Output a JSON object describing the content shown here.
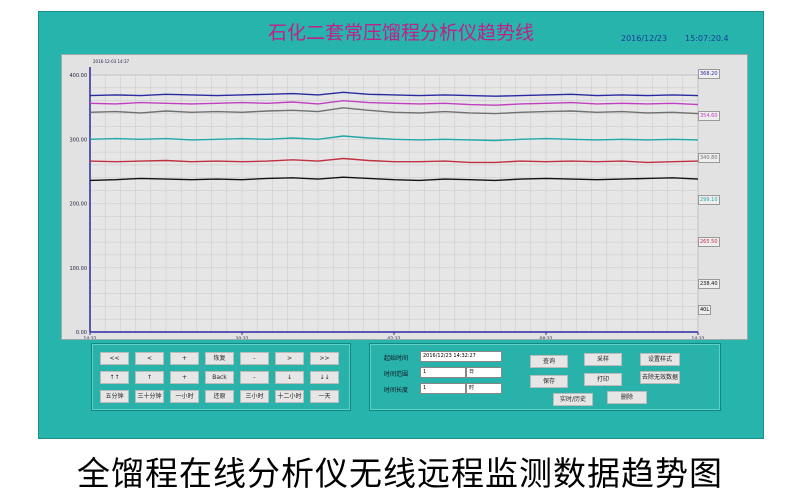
{
  "header": {
    "title": "石化二套常压馏程分析仪趋势线",
    "date": "2016/12/23",
    "time": "15:07:20.4"
  },
  "chart_data": {
    "type": "line",
    "ylim": [
      0,
      400
    ],
    "yticks": [
      "400.00",
      "300.00",
      "200.00",
      "100.00",
      "0.00"
    ],
    "cursor_label": "2016-12-03 14:37",
    "xticks": [
      {
        "t": "14:32",
        "d": "2016-12-03"
      },
      {
        "t": "20:32",
        "d": "2016-12-04"
      },
      {
        "t": "02:32",
        "d": "2016-12-06"
      },
      {
        "t": "08:32",
        "d": "2016-12-07"
      },
      {
        "t": "14:32",
        "d": "2016-12-08"
      }
    ],
    "grid": true,
    "series": [
      {
        "color": "#2a2aa0",
        "values": [
          368,
          369,
          368,
          370,
          369,
          368,
          369,
          370,
          371,
          369,
          373,
          370,
          369,
          368,
          369,
          368,
          367,
          368,
          369,
          370,
          368,
          369,
          368,
          369,
          368
        ]
      },
      {
        "color": "#c040c0",
        "values": [
          356,
          355,
          357,
          356,
          355,
          356,
          357,
          356,
          358,
          355,
          360,
          357,
          356,
          355,
          356,
          354,
          353,
          355,
          356,
          357,
          355,
          356,
          355,
          356,
          354
        ]
      },
      {
        "color": "#707070",
        "values": [
          342,
          343,
          341,
          344,
          342,
          343,
          342,
          344,
          345,
          343,
          349,
          345,
          342,
          341,
          343,
          341,
          340,
          342,
          343,
          344,
          342,
          343,
          341,
          342,
          340
        ]
      },
      {
        "color": "#20a8a8",
        "values": [
          300,
          301,
          300,
          301,
          299,
          300,
          301,
          300,
          302,
          300,
          305,
          302,
          300,
          299,
          300,
          299,
          298,
          300,
          301,
          300,
          299,
          300,
          299,
          300,
          299
        ]
      },
      {
        "color": "#c03040",
        "values": [
          266,
          265,
          266,
          267,
          265,
          266,
          265,
          266,
          268,
          266,
          270,
          267,
          265,
          265,
          266,
          264,
          264,
          266,
          265,
          266,
          265,
          266,
          264,
          265,
          266
        ]
      },
      {
        "color": "#111111",
        "values": [
          236,
          237,
          239,
          238,
          237,
          238,
          237,
          239,
          240,
          238,
          241,
          239,
          237,
          236,
          238,
          237,
          236,
          238,
          239,
          238,
          237,
          238,
          239,
          240,
          238
        ]
      }
    ]
  },
  "legend": [
    {
      "color": "#2a2aa0",
      "v": "368.20"
    },
    {
      "color": "#c040c0",
      "v": "354.60"
    },
    {
      "color": "#707070",
      "v": "340.80"
    },
    {
      "color": "#20a8a8",
      "v": "299.10"
    },
    {
      "color": "#c03040",
      "v": "265.50"
    },
    {
      "color": "#111111",
      "v": "238.40"
    }
  ],
  "legend_extra": "40L",
  "nav_buttons": [
    [
      "<<",
      "<",
      "+",
      "恢复",
      "-",
      ">",
      ">>"
    ],
    [
      "↑↑",
      "↑",
      "+",
      "Back",
      "-",
      "↓",
      "↓↓"
    ],
    [
      "五分钟",
      "三十分钟",
      "一小时",
      "还原",
      "三小时",
      "十二小时",
      "一天"
    ]
  ],
  "query": {
    "start_label": "起始时间",
    "start_value": "2016/12/23  14:32:27",
    "range_label": "时间范围",
    "range_value": "1",
    "range_unit": "日",
    "length_label": "时间长度",
    "length_value": "1",
    "length_unit": "时"
  },
  "actions": {
    "query": "查询",
    "save": "保存",
    "realtime": "实时/历史",
    "sample": "采样",
    "print": "打印",
    "delete": "删除",
    "style": "设置样式",
    "clean": "去除无效数据"
  },
  "caption": "全馏程在线分析仪无线远程监测数据趋势图"
}
